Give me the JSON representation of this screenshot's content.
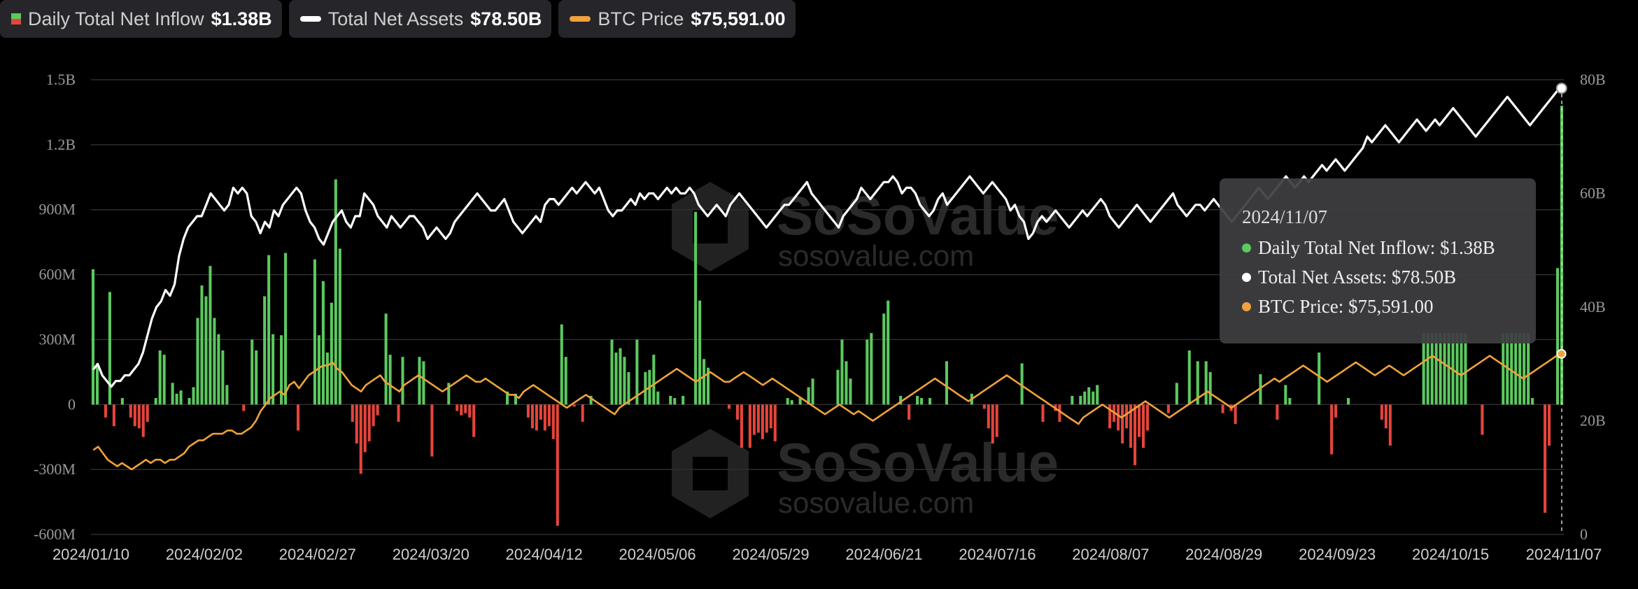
{
  "legend": {
    "inflow": {
      "label": "Daily Total Net Inflow",
      "value": "$1.38B"
    },
    "assets": {
      "label": "Total Net Assets",
      "value": "$78.50B"
    },
    "price": {
      "label": "BTC Price",
      "value": "$75,591.00"
    }
  },
  "tooltip": {
    "date": "2024/11/07",
    "inflow": "Daily Total Net Inflow: $1.38B",
    "assets": "Total Net Assets: $78.50B",
    "price": "BTC Price: $75,591.00"
  },
  "watermark": {
    "brand": "SoSoValue",
    "url": "sosovalue.com"
  },
  "colors": {
    "positive": "#5cc95f",
    "negative": "#e5453b",
    "assets": "#ffffff",
    "price": "#f0a23c",
    "grid": "#2e2e2e"
  },
  "chart_data": {
    "type": "bar",
    "x_range": [
      "2024/01/10",
      "2024/11/07"
    ],
    "x_ticks": [
      "2024/01/10",
      "2024/02/02",
      "2024/02/27",
      "2024/03/20",
      "2024/04/12",
      "2024/05/06",
      "2024/05/29",
      "2024/06/21",
      "2024/07/16",
      "2024/08/07",
      "2024/08/29",
      "2024/09/23",
      "2024/10/15",
      "2024/11/07"
    ],
    "y_left_ticks": [
      "1.5B",
      "1.2B",
      "900M",
      "600M",
      "300M",
      "0",
      "-300M",
      "-600M"
    ],
    "y_left_range": [
      -600,
      1500
    ],
    "y_right_ticks": [
      "80B",
      "60B",
      "40B",
      "20B",
      "0"
    ],
    "y_right_range": [
      0,
      80
    ],
    "series": [
      {
        "name": "Daily Total Net Inflow",
        "unit": "M",
        "values": [
          625,
          190,
          0,
          -60,
          520,
          -100,
          0,
          30,
          0,
          -60,
          -100,
          -110,
          -150,
          -80,
          0,
          30,
          250,
          230,
          0,
          100,
          50,
          65,
          0,
          30,
          80,
          400,
          550,
          500,
          640,
          400,
          325,
          250,
          90,
          0,
          0,
          0,
          -30,
          0,
          300,
          250,
          0,
          500,
          690,
          325,
          0,
          320,
          700,
          0,
          0,
          -120,
          0,
          0,
          0,
          670,
          320,
          570,
          240,
          470,
          1040,
          720,
          0,
          0,
          -80,
          -180,
          -320,
          -220,
          -170,
          -100,
          -50,
          0,
          420,
          230,
          0,
          -80,
          220,
          0,
          0,
          0,
          220,
          200,
          0,
          -240,
          0,
          0,
          0,
          100,
          0,
          -30,
          -50,
          -40,
          -60,
          -150,
          0,
          0,
          0,
          0,
          0,
          0,
          0,
          60,
          0,
          50,
          0,
          0,
          -60,
          -110,
          -120,
          -70,
          -120,
          -100,
          -160,
          -560,
          370,
          220,
          0,
          -10,
          0,
          -80,
          0,
          40,
          0,
          0,
          0,
          0,
          300,
          240,
          260,
          220,
          150,
          0,
          300,
          0,
          150,
          160,
          230,
          60,
          0,
          0,
          40,
          30,
          0,
          40,
          0,
          0,
          890,
          480,
          210,
          170,
          0,
          0,
          0,
          0,
          -20,
          0,
          -70,
          -200,
          0,
          -200,
          -140,
          -130,
          -160,
          -130,
          -110,
          -170,
          0,
          0,
          30,
          20,
          0,
          30,
          0,
          80,
          120,
          0,
          0,
          0,
          0,
          0,
          160,
          300,
          200,
          120,
          0,
          0,
          0,
          300,
          330,
          0,
          0,
          420,
          480,
          0,
          0,
          40,
          0,
          -70,
          0,
          40,
          30,
          0,
          30,
          0,
          0,
          0,
          200,
          0,
          0,
          0,
          0,
          0,
          50,
          0,
          0,
          -20,
          -110,
          -180,
          -150,
          0,
          0,
          0,
          0,
          0,
          190,
          0,
          0,
          0,
          0,
          -80,
          0,
          0,
          -30,
          -80,
          0,
          0,
          40,
          0,
          40,
          60,
          80,
          60,
          90,
          0,
          0,
          -110,
          -80,
          -120,
          -180,
          -110,
          -200,
          -280,
          -150,
          -200,
          -120,
          0,
          0,
          0,
          0,
          -40,
          0,
          100,
          0,
          0,
          250,
          0,
          200,
          0,
          200,
          150,
          0,
          0,
          -40,
          0,
          -30,
          -90,
          0,
          0,
          0,
          0,
          0,
          140,
          0,
          0,
          0,
          -70,
          0,
          90,
          30,
          0,
          0,
          0,
          0,
          0,
          0,
          240,
          0,
          0,
          -230,
          -60,
          0,
          0,
          30,
          0,
          0,
          0,
          0,
          0,
          0,
          0,
          -70,
          -110,
          -190,
          0,
          0,
          0,
          0,
          0,
          0,
          0,
          330,
          330,
          330,
          330,
          330,
          330,
          330,
          330,
          330,
          330,
          330,
          0,
          0,
          0,
          -140,
          0,
          0,
          0,
          0,
          330,
          330,
          330,
          330,
          330,
          330,
          330,
          30,
          0,
          0,
          -500,
          -190,
          0,
          630,
          1380
        ]
      },
      {
        "name": "Total Net Assets",
        "unit": "B",
        "values": [
          29,
          30,
          28,
          27,
          26,
          27,
          27,
          28,
          28,
          29,
          30,
          32,
          35,
          38,
          40,
          41,
          43,
          42,
          44,
          49,
          52,
          54,
          55,
          56,
          56,
          58,
          60,
          59,
          58,
          57,
          58,
          61,
          60,
          61,
          60,
          56,
          55,
          53,
          55,
          54,
          57,
          56,
          58,
          59,
          60,
          61,
          60,
          57,
          55,
          54,
          52,
          51,
          53,
          55,
          56,
          57,
          55,
          54,
          56,
          56,
          60,
          59,
          58,
          56,
          55,
          54,
          56,
          55,
          54,
          55,
          56,
          56,
          55,
          54,
          52,
          53,
          54,
          53,
          52,
          53,
          55,
          56,
          57,
          58,
          59,
          60,
          59,
          58,
          57,
          57,
          58,
          59,
          57,
          55,
          54,
          53,
          54,
          55,
          56,
          55,
          58,
          59,
          59,
          58,
          59,
          60,
          61,
          60,
          61,
          62,
          61,
          60,
          61,
          59,
          57,
          56,
          57,
          57,
          58,
          59,
          58,
          60,
          59,
          60,
          60,
          59,
          60,
          61,
          60,
          61,
          60,
          60,
          61,
          60,
          58,
          57,
          56,
          57,
          58,
          57,
          56,
          58,
          59,
          60,
          59,
          58,
          57,
          56,
          55,
          54,
          55,
          56,
          57,
          58,
          58,
          59,
          60,
          61,
          62,
          60,
          59,
          58,
          57,
          56,
          55,
          54,
          56,
          57,
          58,
          59,
          61,
          60,
          59,
          60,
          61,
          62,
          62,
          63,
          62,
          60,
          61,
          61,
          60,
          58,
          57,
          56,
          57,
          59,
          60,
          58,
          59,
          60,
          61,
          62,
          63,
          62,
          61,
          60,
          61,
          62,
          61,
          60,
          59,
          57,
          58,
          56,
          55,
          52,
          53,
          55,
          56,
          55,
          56,
          57,
          56,
          55,
          54,
          55,
          56,
          57,
          56,
          57,
          58,
          59,
          58,
          56,
          55,
          54,
          55,
          56,
          57,
          58,
          57,
          56,
          55,
          56,
          57,
          58,
          59,
          60,
          58,
          57,
          56,
          57,
          58,
          58,
          57,
          58,
          59,
          58,
          57,
          56,
          55,
          56,
          57,
          58,
          59,
          60,
          61,
          60,
          59,
          60,
          61,
          62,
          63,
          62,
          61,
          62,
          63,
          62,
          63,
          64,
          65,
          64,
          65,
          66,
          65,
          64,
          65,
          66,
          67,
          68,
          70,
          69,
          70,
          71,
          72,
          71,
          70,
          69,
          70,
          71,
          72,
          73,
          72,
          71,
          72,
          73,
          72,
          73,
          74,
          75,
          74,
          73,
          72,
          71,
          70,
          71,
          72,
          73,
          74,
          75,
          76,
          77,
          76,
          75,
          74,
          73,
          72,
          73,
          74,
          75,
          76,
          77,
          78,
          78.5
        ]
      },
      {
        "name": "BTC Price",
        "unit": "K",
        "values": [
          46,
          47,
          45,
          43,
          42,
          41,
          42,
          41,
          40,
          41,
          42,
          43,
          42,
          43,
          43,
          42,
          43,
          43,
          44,
          45,
          47,
          48,
          49,
          49,
          50,
          51,
          51,
          51,
          52,
          52,
          51,
          51,
          52,
          53,
          55,
          58,
          60,
          62,
          63,
          64,
          63,
          66,
          67,
          65,
          67,
          69,
          70,
          71,
          72,
          72,
          73,
          71,
          70,
          68,
          66,
          65,
          64,
          66,
          67,
          68,
          69,
          67,
          66,
          65,
          64,
          66,
          67,
          68,
          69,
          68,
          67,
          66,
          65,
          64,
          65,
          66,
          67,
          68,
          69,
          68,
          67,
          67,
          68,
          67,
          66,
          65,
          64,
          63,
          63,
          62,
          64,
          65,
          66,
          65,
          64,
          63,
          62,
          61,
          60,
          59,
          60,
          61,
          62,
          63,
          62,
          61,
          60,
          59,
          58,
          57,
          59,
          60,
          61,
          62,
          63,
          64,
          65,
          66,
          67,
          68,
          69,
          70,
          71,
          70,
          69,
          68,
          67,
          68,
          69,
          70,
          69,
          68,
          67,
          67,
          68,
          69,
          70,
          69,
          68,
          67,
          66,
          67,
          68,
          67,
          66,
          65,
          64,
          63,
          62,
          61,
          60,
          59,
          58,
          57,
          58,
          59,
          60,
          59,
          58,
          57,
          58,
          57,
          56,
          55,
          56,
          57,
          58,
          59,
          60,
          61,
          62,
          63,
          64,
          65,
          66,
          67,
          68,
          67,
          66,
          65,
          64,
          63,
          62,
          61,
          62,
          63,
          64,
          65,
          66,
          67,
          68,
          69,
          68,
          67,
          66,
          65,
          64,
          63,
          62,
          61,
          60,
          59,
          58,
          57,
          56,
          55,
          54,
          56,
          57,
          58,
          59,
          60,
          59,
          58,
          57,
          56,
          57,
          58,
          59,
          60,
          61,
          60,
          59,
          58,
          57,
          56,
          57,
          58,
          59,
          60,
          61,
          62,
          63,
          64,
          63,
          62,
          61,
          60,
          59,
          60,
          61,
          62,
          63,
          64,
          65,
          66,
          67,
          68,
          67,
          68,
          69,
          70,
          71,
          72,
          71,
          70,
          69,
          68,
          67,
          68,
          69,
          70,
          71,
          72,
          73,
          72,
          71,
          70,
          69,
          70,
          71,
          72,
          71,
          70,
          69,
          70,
          71,
          72,
          73,
          74,
          75,
          74,
          73,
          72,
          71,
          70,
          69,
          70,
          71,
          72,
          73,
          74,
          75,
          74,
          73,
          72,
          71,
          70,
          69,
          68,
          69,
          70,
          71,
          72,
          73,
          74,
          75,
          75.6
        ]
      }
    ]
  }
}
